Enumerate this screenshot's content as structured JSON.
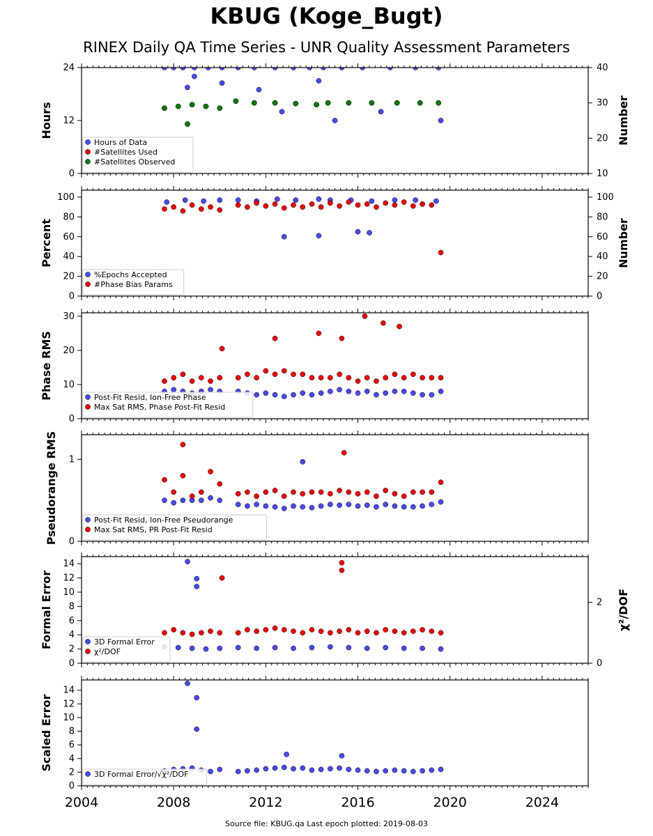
{
  "title": "KBUG (Koge_Bugt)",
  "subtitle": "RINEX Daily QA Time Series - UNR Quality Assessment Parameters",
  "footer": "Source file: KBUG.qa Last epoch plotted: 2019-08-03",
  "colors": {
    "blue": "#4a4aee",
    "red": "#ee0000",
    "green": "#0f7a0f",
    "edge": "#000000"
  },
  "chart_data": [
    {
      "type": "scatter",
      "ylabel": "Hours",
      "ylabel_right": "Number",
      "xlim": [
        2004,
        2026
      ],
      "ylim": [
        0,
        24
      ],
      "ylim_right": [
        10,
        40
      ],
      "yticks": [
        "0",
        "12",
        "24"
      ],
      "yticks_right": [
        "10",
        "20",
        "30",
        "40"
      ],
      "legend_position": "lower-left",
      "series": [
        {
          "name": "Hours of Data",
          "axis": "left",
          "color": "blue",
          "x": [
            2007.6,
            2008.0,
            2008.4,
            2008.9,
            2009.5,
            2010.1,
            2010.8,
            2011.5,
            2012.4,
            2013.2,
            2013.9,
            2014.5,
            2015.3,
            2016.2,
            2017.4,
            2018.5,
            2019.5,
            2008.6,
            2008.9,
            2010.1,
            2011.7,
            2012.7,
            2014.3,
            2015.0,
            2017.0,
            2019.6
          ],
          "y": [
            24,
            24,
            24,
            24,
            24,
            24,
            24,
            24,
            24,
            24,
            24,
            24,
            24,
            24,
            24,
            24,
            24,
            19.5,
            22,
            20.5,
            19,
            14,
            21,
            12,
            14,
            12
          ]
        },
        {
          "name": "#Satellites Used",
          "axis": "right",
          "color": "red",
          "x": [
            2007.6,
            2008.2,
            2008.8,
            2009.4,
            2010.0,
            2010.7,
            2011.5,
            2012.4,
            2013.3,
            2014.2,
            2014.7,
            2015.6,
            2016.6,
            2017.7,
            2018.7,
            2019.5,
            2008.6
          ],
          "y": [
            28.5,
            29,
            29.5,
            29,
            28.5,
            30.5,
            30,
            30,
            29.8,
            29.5,
            30,
            30,
            30,
            30,
            30,
            30,
            24
          ]
        },
        {
          "name": "#Satellites Observed",
          "axis": "right",
          "color": "green",
          "x": [
            2007.6,
            2008.2,
            2008.8,
            2009.4,
            2010.0,
            2010.7,
            2011.5,
            2012.4,
            2013.3,
            2014.2,
            2014.7,
            2015.6,
            2016.6,
            2017.7,
            2018.7,
            2019.5,
            2008.6
          ],
          "y": [
            28.5,
            29,
            29.5,
            29,
            28.5,
            30.5,
            30,
            30,
            29.8,
            29.5,
            30,
            30,
            30,
            30,
            30,
            30,
            24
          ]
        }
      ]
    },
    {
      "type": "scatter",
      "ylabel": "Percent",
      "ylabel_right": "Number",
      "xlim": [
        2004,
        2026
      ],
      "ylim": [
        0,
        107
      ],
      "ylim_right": [
        0,
        107
      ],
      "yticks": [
        "0",
        "20",
        "40",
        "60",
        "80",
        "100"
      ],
      "yticks_right": [
        "0",
        "20",
        "40",
        "60",
        "80",
        "100"
      ],
      "legend_position": "lower-left",
      "series": [
        {
          "name": "%Epochs Accepted",
          "axis": "left",
          "color": "blue",
          "x": [
            2007.7,
            2008.5,
            2009.3,
            2010.0,
            2010.8,
            2011.6,
            2012.5,
            2013.3,
            2014.3,
            2014.8,
            2015.7,
            2016.6,
            2017.6,
            2018.5,
            2019.4,
            2012.8,
            2014.3,
            2016.0,
            2016.5
          ],
          "y": [
            95,
            97,
            96,
            97,
            97,
            96,
            98,
            97,
            98,
            97,
            97,
            96,
            97,
            97,
            96,
            60,
            61,
            65,
            64
          ]
        },
        {
          "name": "#Phase Bias Params",
          "axis": "right",
          "color": "red",
          "x": [
            2007.6,
            2008.0,
            2008.4,
            2008.8,
            2009.2,
            2009.6,
            2010.0,
            2010.8,
            2011.2,
            2011.6,
            2012.0,
            2012.4,
            2012.8,
            2013.2,
            2013.6,
            2014.0,
            2014.4,
            2014.8,
            2015.2,
            2015.6,
            2016.0,
            2016.4,
            2016.8,
            2017.2,
            2017.6,
            2018.0,
            2018.4,
            2018.8,
            2019.2,
            2019.6
          ],
          "y": [
            88,
            90,
            86,
            92,
            88,
            90,
            87,
            92,
            90,
            94,
            91,
            93,
            89,
            92,
            90,
            93,
            90,
            94,
            91,
            95,
            92,
            93,
            90,
            94,
            92,
            95,
            91,
            93,
            92,
            44
          ]
        }
      ]
    },
    {
      "type": "scatter",
      "ylabel": "Phase RMS",
      "xlim": [
        2004,
        2026
      ],
      "ylim": [
        0,
        31
      ],
      "yticks": [
        "0",
        "10",
        "20",
        "30"
      ],
      "legend_position": "lower-left",
      "series": [
        {
          "name": "Post-Fit Resid, Ion-Free Phase",
          "axis": "left",
          "color": "blue",
          "x": [
            2007.6,
            2008.0,
            2008.4,
            2008.8,
            2009.2,
            2009.6,
            2010.0,
            2010.8,
            2011.2,
            2011.6,
            2012.0,
            2012.4,
            2012.8,
            2013.2,
            2013.6,
            2014.0,
            2014.4,
            2014.8,
            2015.2,
            2015.6,
            2016.0,
            2016.4,
            2016.8,
            2017.2,
            2017.6,
            2018.0,
            2018.4,
            2018.8,
            2019.2,
            2019.6
          ],
          "y": [
            8,
            8.5,
            8,
            7.5,
            8,
            8.5,
            8,
            8,
            7.5,
            7,
            7.5,
            7,
            6.5,
            7,
            7.5,
            7,
            7.5,
            8,
            8.5,
            8,
            7.5,
            8,
            7,
            7.5,
            8,
            8,
            7.5,
            7,
            7,
            8
          ]
        },
        {
          "name": "Max Sat RMS, Phase Post-Fit Resid",
          "axis": "left",
          "color": "red",
          "x": [
            2007.6,
            2008.0,
            2008.4,
            2008.8,
            2009.2,
            2009.6,
            2010.0,
            2010.8,
            2011.2,
            2011.6,
            2012.0,
            2012.4,
            2012.8,
            2013.2,
            2013.6,
            2014.0,
            2014.4,
            2014.8,
            2015.2,
            2015.6,
            2016.0,
            2016.4,
            2016.8,
            2017.2,
            2017.6,
            2018.0,
            2018.4,
            2018.8,
            2019.2,
            2019.6,
            2014.3,
            2016.3,
            2017.1,
            2017.8,
            2015.3,
            2010.1,
            2012.4
          ],
          "y": [
            11,
            12,
            13,
            11,
            12,
            11,
            12,
            12,
            13,
            12,
            14,
            13,
            14,
            13,
            13,
            12,
            12,
            12,
            13,
            12,
            11,
            12,
            11,
            12,
            13,
            12,
            13,
            12,
            12,
            12,
            25,
            30,
            28,
            27,
            23.5,
            20.5,
            23.5
          ]
        }
      ]
    },
    {
      "type": "scatter",
      "ylabel": "Pseudorange RMS",
      "xlim": [
        2004,
        2026
      ],
      "ylim": [
        0,
        1.3
      ],
      "yticks": [
        "0",
        "1"
      ],
      "legend_position": "lower-left",
      "series": [
        {
          "name": "Post-Fit Resid, Ion-Free Pseudorange",
          "axis": "left",
          "color": "blue",
          "x": [
            2007.6,
            2008.0,
            2008.4,
            2008.8,
            2009.2,
            2009.6,
            2010.0,
            2010.8,
            2011.2,
            2011.6,
            2012.0,
            2012.4,
            2012.8,
            2013.2,
            2013.6,
            2014.0,
            2014.4,
            2014.8,
            2015.2,
            2015.6,
            2016.0,
            2016.4,
            2016.8,
            2017.2,
            2017.6,
            2018.0,
            2018.4,
            2018.8,
            2019.2,
            2019.6,
            2013.6
          ],
          "y": [
            0.5,
            0.47,
            0.5,
            0.5,
            0.5,
            0.53,
            0.5,
            0.45,
            0.43,
            0.45,
            0.43,
            0.42,
            0.4,
            0.43,
            0.42,
            0.41,
            0.43,
            0.45,
            0.44,
            0.45,
            0.43,
            0.44,
            0.42,
            0.45,
            0.43,
            0.42,
            0.42,
            0.43,
            0.45,
            0.48,
            0.97
          ]
        },
        {
          "name": "Max Sat RMS, PR Post-Fit Resid",
          "axis": "left",
          "color": "red",
          "x": [
            2007.6,
            2008.0,
            2008.4,
            2008.8,
            2009.2,
            2009.6,
            2010.0,
            2010.8,
            2011.2,
            2011.6,
            2012.0,
            2012.4,
            2012.8,
            2013.2,
            2013.6,
            2014.0,
            2014.4,
            2014.8,
            2015.2,
            2015.6,
            2016.0,
            2016.4,
            2016.8,
            2017.2,
            2017.6,
            2018.0,
            2018.4,
            2018.8,
            2019.2,
            2019.6,
            2008.4,
            2015.4
          ],
          "y": [
            0.75,
            0.6,
            0.8,
            0.55,
            0.6,
            0.85,
            0.7,
            0.58,
            0.6,
            0.55,
            0.6,
            0.62,
            0.55,
            0.6,
            0.58,
            0.6,
            0.6,
            0.58,
            0.62,
            0.6,
            0.58,
            0.6,
            0.55,
            0.62,
            0.58,
            0.55,
            0.6,
            0.6,
            0.6,
            0.72,
            1.18,
            1.08
          ]
        }
      ]
    },
    {
      "type": "scatter",
      "ylabel": "Formal Error",
      "ylabel_right": "χ²/DOF",
      "xlim": [
        2004,
        2026
      ],
      "ylim": [
        0,
        15
      ],
      "ylim_right": [
        0,
        3.5
      ],
      "yticks": [
        "0",
        "2",
        "4",
        "6",
        "8",
        "10",
        "12",
        "14"
      ],
      "yticks_right": [
        "0",
        "2"
      ],
      "legend_position": "lower-left",
      "series": [
        {
          "name": "3D Formal Error",
          "axis": "left",
          "color": "blue",
          "x": [
            2007.6,
            2008.2,
            2008.8,
            2009.4,
            2010.0,
            2010.8,
            2011.6,
            2012.4,
            2013.2,
            2014.0,
            2014.8,
            2015.6,
            2016.4,
            2017.2,
            2018.0,
            2018.8,
            2019.6,
            2008.6,
            2009.0,
            2009.0
          ],
          "y": [
            2.3,
            2.2,
            2.1,
            2.0,
            2.1,
            2.2,
            2.1,
            2.2,
            2.1,
            2.2,
            2.3,
            2.2,
            2.1,
            2.2,
            2.1,
            2.1,
            2.0,
            14.3,
            11.9,
            10.8
          ]
        },
        {
          "name": "χ²/DOF",
          "axis": "right",
          "color": "red",
          "x": [
            2007.6,
            2008.0,
            2008.4,
            2008.8,
            2009.2,
            2009.6,
            2010.0,
            2010.8,
            2011.2,
            2011.6,
            2012.0,
            2012.4,
            2012.8,
            2013.2,
            2013.6,
            2014.0,
            2014.4,
            2014.8,
            2015.2,
            2015.6,
            2016.0,
            2016.4,
            2016.8,
            2017.2,
            2017.6,
            2018.0,
            2018.4,
            2018.8,
            2019.2,
            2019.6,
            2010.1,
            2015.3,
            2015.3
          ],
          "y": [
            1.0,
            1.1,
            1.0,
            0.95,
            1.0,
            1.05,
            1.0,
            1.0,
            1.1,
            1.05,
            1.1,
            1.15,
            1.1,
            1.05,
            1.0,
            1.1,
            1.05,
            1.0,
            1.05,
            1.1,
            1.0,
            1.05,
            1.0,
            1.1,
            1.05,
            1.0,
            1.05,
            1.1,
            1.05,
            1.0,
            2.8,
            3.3,
            3.05
          ]
        }
      ]
    },
    {
      "type": "scatter",
      "ylabel": "Scaled Error",
      "xlim": [
        2004,
        2026
      ],
      "ylim": [
        0,
        15.5
      ],
      "yticks": [
        "0",
        "2",
        "4",
        "6",
        "8",
        "10",
        "12",
        "14"
      ],
      "xticks": [
        "2004",
        "2008",
        "2012",
        "2016",
        "2020",
        "2024"
      ],
      "legend_position": "lower-left",
      "series": [
        {
          "name": "3D Formal Error/√χ²/DOF",
          "axis": "left",
          "color": "blue",
          "x": [
            2007.6,
            2008.0,
            2008.4,
            2008.8,
            2009.2,
            2009.6,
            2010.0,
            2010.8,
            2011.2,
            2011.6,
            2012.0,
            2012.4,
            2012.8,
            2013.2,
            2013.6,
            2014.0,
            2014.4,
            2014.8,
            2015.2,
            2015.6,
            2016.0,
            2016.4,
            2016.8,
            2017.2,
            2017.6,
            2018.0,
            2018.4,
            2018.8,
            2019.2,
            2019.6,
            2008.6,
            2009.0,
            2009.0,
            2012.9,
            2015.3
          ],
          "y": [
            2.2,
            2.4,
            2.5,
            2.6,
            2.3,
            2.1,
            2.4,
            2.1,
            2.2,
            2.3,
            2.5,
            2.6,
            2.7,
            2.5,
            2.6,
            2.3,
            2.4,
            2.5,
            2.6,
            2.4,
            2.3,
            2.2,
            2.1,
            2.2,
            2.3,
            2.2,
            2.1,
            2.2,
            2.3,
            2.4,
            15.0,
            12.9,
            8.3,
            4.6,
            4.4
          ]
        }
      ]
    }
  ]
}
